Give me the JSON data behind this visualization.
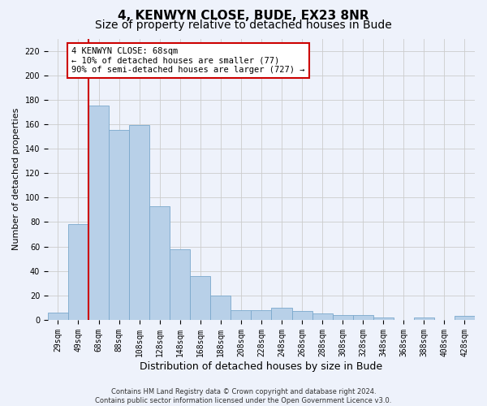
{
  "title": "4, KENWYN CLOSE, BUDE, EX23 8NR",
  "subtitle": "Size of property relative to detached houses in Bude",
  "xlabel": "Distribution of detached houses by size in Bude",
  "ylabel": "Number of detached properties",
  "footer_line1": "Contains HM Land Registry data © Crown copyright and database right 2024.",
  "footer_line2": "Contains public sector information licensed under the Open Government Licence v3.0.",
  "categories": [
    "29sqm",
    "49sqm",
    "68sqm",
    "88sqm",
    "108sqm",
    "128sqm",
    "148sqm",
    "168sqm",
    "188sqm",
    "208sqm",
    "228sqm",
    "248sqm",
    "268sqm",
    "288sqm",
    "308sqm",
    "328sqm",
    "348sqm",
    "368sqm",
    "388sqm",
    "408sqm",
    "428sqm"
  ],
  "values": [
    6,
    78,
    175,
    155,
    159,
    93,
    58,
    36,
    20,
    8,
    8,
    10,
    7,
    5,
    4,
    4,
    2,
    0,
    2,
    0,
    3
  ],
  "bar_color": "#b8d0e8",
  "bar_edge_color": "#7aa8cc",
  "grid_color": "#cccccc",
  "vline_color": "#cc0000",
  "vline_x": 2,
  "annotation_line1": "4 KENWYN CLOSE: 68sqm",
  "annotation_line2": "← 10% of detached houses are smaller (77)",
  "annotation_line3": "90% of semi-detached houses are larger (727) →",
  "ylim": [
    0,
    230
  ],
  "yticks": [
    0,
    20,
    40,
    60,
    80,
    100,
    120,
    140,
    160,
    180,
    200,
    220
  ],
  "background_color": "#eef2fb",
  "title_fontsize": 11,
  "subtitle_fontsize": 10,
  "xlabel_fontsize": 9,
  "ylabel_fontsize": 8,
  "tick_fontsize": 7,
  "footer_fontsize": 6
}
